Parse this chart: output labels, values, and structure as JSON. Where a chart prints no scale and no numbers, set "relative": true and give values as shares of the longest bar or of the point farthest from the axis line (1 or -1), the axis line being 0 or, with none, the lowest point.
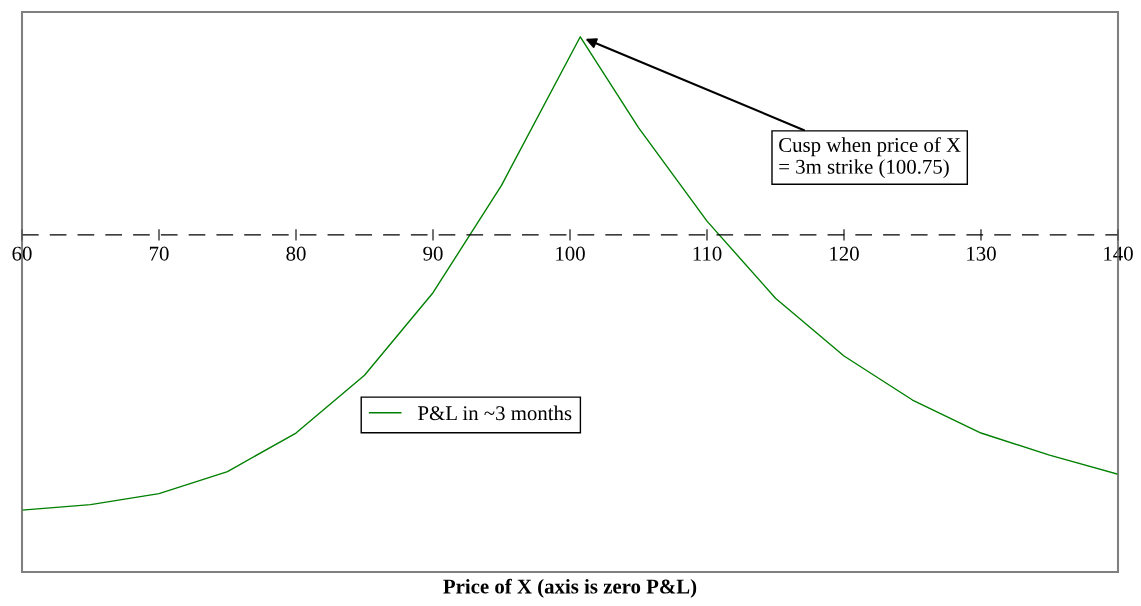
{
  "chart_data": {
    "type": "line",
    "relative": true,
    "xlabel": "Price of X (axis is zero P&L)",
    "x": [
      60,
      65,
      70,
      75,
      80,
      85,
      90,
      95,
      100.75,
      105,
      110,
      115,
      120,
      125,
      130,
      135,
      140
    ],
    "series": [
      {
        "name": "P&L in ~3 months",
        "color": "#008000",
        "values": [
          -1,
          -0.98,
          -0.94,
          -0.86,
          -0.72,
          -0.51,
          -0.21,
          0.18,
          0.72,
          0.39,
          0.05,
          -0.23,
          -0.44,
          -0.6,
          -0.72,
          -0.8,
          -0.87
        ]
      }
    ],
    "xlim": [
      60,
      140
    ],
    "xticks": [
      60,
      70,
      80,
      90,
      100,
      110,
      120,
      130,
      140
    ],
    "annotations": [
      {
        "text": "Cusp when price of X\n= 3m strike (100.75)",
        "x": 100.75,
        "y": 0.72
      }
    ],
    "ref_lines": [
      {
        "axis": "y",
        "value": 0,
        "color": "#000000",
        "line_style": "dashed"
      }
    ],
    "legend": "bottom left",
    "grid": false,
    "marker": "none",
    "line_style": "solid",
    "tick_labels": "x"
  }
}
